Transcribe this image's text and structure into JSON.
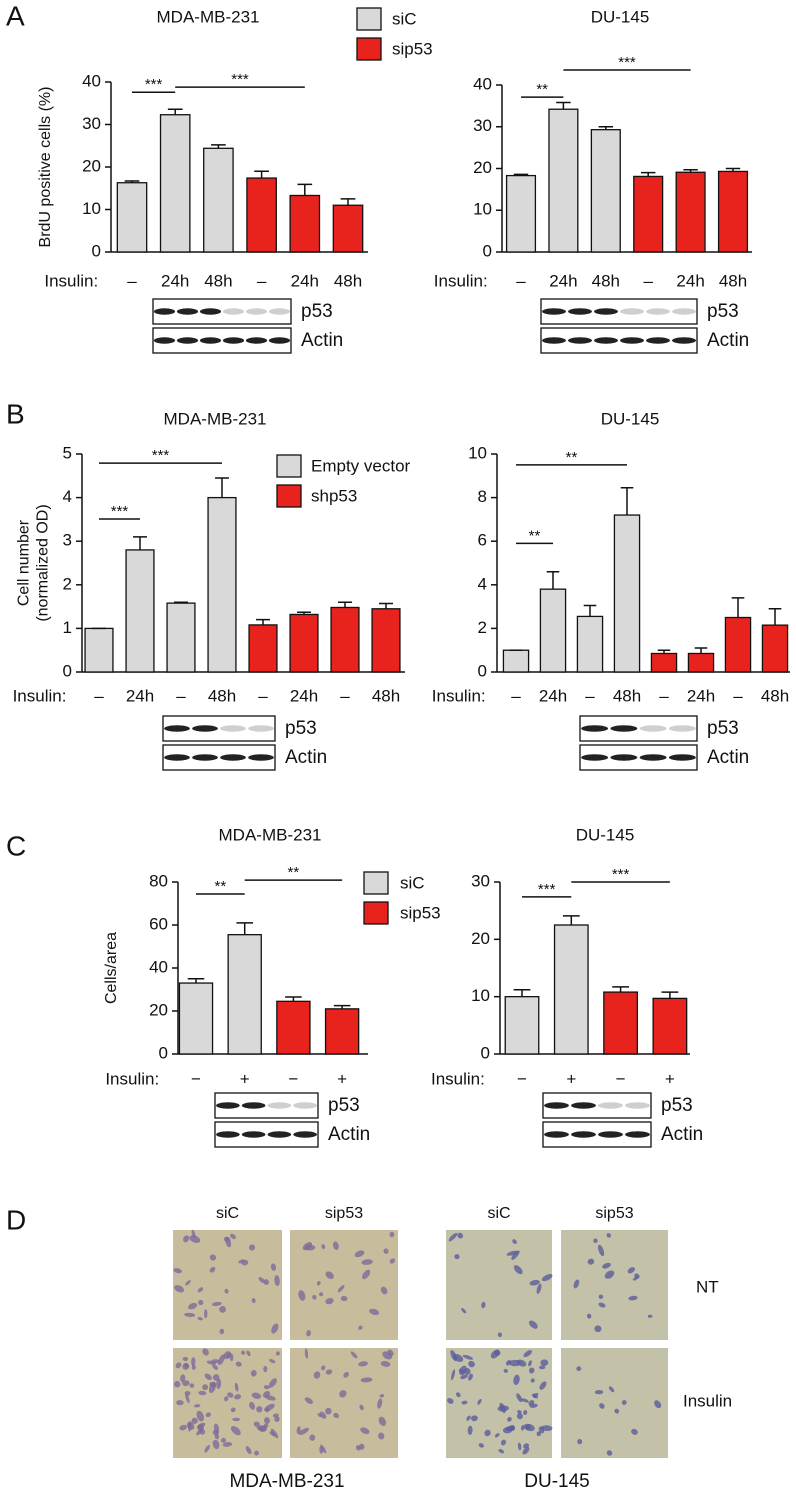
{
  "panel_labels": [
    "A",
    "B",
    "C",
    "D"
  ],
  "chart_data": [
    {
      "type": "bar",
      "title": "MDA-MB-231",
      "y_label": "BrdU positive cells (%)",
      "x_label": "Insulin:",
      "categories": [
        "–",
        "24h",
        "48h",
        "–",
        "24h",
        "48h"
      ],
      "values": [
        16.3,
        32.3,
        24.4,
        17.4,
        13.3,
        11
      ],
      "errors": [
        0.4,
        1.3,
        0.8,
        1.6,
        2.6,
        1.5
      ],
      "bar_colors": [
        "#d9d9d9",
        "#d9d9d9",
        "#d9d9d9",
        "#e8231e",
        "#e8231e",
        "#e8231e"
      ],
      "ylim": [
        0,
        40
      ],
      "yticks": [
        0,
        10,
        20,
        30,
        40
      ],
      "annotations": [
        {
          "label": "***",
          "x1": 0,
          "x2": 1,
          "y": 37.6
        },
        {
          "label": "***",
          "x1": 1,
          "x2": 4,
          "y": 38.8
        }
      ],
      "blot_labels": [
        "p53",
        "Actin"
      ],
      "legend": [
        {
          "name": "siC",
          "color": "#d9d9d9"
        },
        {
          "name": "sip53",
          "color": "#e8231e"
        }
      ]
    },
    {
      "type": "bar",
      "title": "DU-145",
      "x_label": "Insulin:",
      "categories": [
        "–",
        "24h",
        "48h",
        "–",
        "24h",
        "48h"
      ],
      "values": [
        18.3,
        34.2,
        29.3,
        18.1,
        19.1,
        19.3
      ],
      "errors": [
        0.3,
        1.6,
        0.7,
        0.9,
        0.6,
        0.7
      ],
      "bar_colors": [
        "#d9d9d9",
        "#d9d9d9",
        "#d9d9d9",
        "#e8231e",
        "#e8231e",
        "#e8231e"
      ],
      "ylim": [
        0,
        40
      ],
      "yticks": [
        0,
        10,
        20,
        30,
        40
      ],
      "annotations": [
        {
          "label": "**",
          "x1": 0,
          "x2": 1,
          "y": 37.1
        },
        {
          "label": "***",
          "x1": 1,
          "x2": 4,
          "y": 43.6
        }
      ],
      "blot_labels": [
        "p53",
        "Actin"
      ]
    },
    {
      "type": "bar",
      "title": "MDA-MB-231",
      "y_label": [
        "Cell number",
        "(normalized OD)"
      ],
      "x_label": "Insulin:",
      "categories": [
        "–",
        "24h",
        "–",
        "48h",
        "–",
        "24h",
        "–",
        "48h"
      ],
      "values": [
        1.0,
        2.8,
        1.58,
        4.0,
        1.08,
        1.32,
        1.48,
        1.45
      ],
      "errors": [
        0,
        0.3,
        0.02,
        0.45,
        0.12,
        0.05,
        0.12,
        0.12
      ],
      "bar_colors": [
        "#d9d9d9",
        "#d9d9d9",
        "#d9d9d9",
        "#d9d9d9",
        "#e8231e",
        "#e8231e",
        "#e8231e",
        "#e8231e"
      ],
      "ylim": [
        0,
        5
      ],
      "yticks": [
        0,
        1,
        2,
        3,
        4,
        5
      ],
      "annotations": [
        {
          "label": "***",
          "x1": 0,
          "x2": 1,
          "y": 3.51
        },
        {
          "label": "***",
          "x1": 0,
          "x2": 3,
          "y": 4.79
        }
      ],
      "blot_labels": [
        "p53",
        "Actin"
      ],
      "legend": [
        {
          "name": "Empty vector",
          "color": "#d9d9d9"
        },
        {
          "name": "shp53",
          "color": "#e8231e"
        }
      ]
    },
    {
      "type": "bar",
      "title": "DU-145",
      "x_label": "Insulin:",
      "categories": [
        "–",
        "24h",
        "–",
        "48h",
        "–",
        "24h",
        "–",
        "48h"
      ],
      "values": [
        1.0,
        3.8,
        2.55,
        7.2,
        0.85,
        0.85,
        2.5,
        2.15
      ],
      "errors": [
        0,
        0.8,
        0.5,
        1.25,
        0.15,
        0.25,
        0.9,
        0.75
      ],
      "bar_colors": [
        "#d9d9d9",
        "#d9d9d9",
        "#d9d9d9",
        "#d9d9d9",
        "#e8231e",
        "#e8231e",
        "#e8231e",
        "#e8231e"
      ],
      "ylim": [
        0,
        10
      ],
      "yticks": [
        0,
        2,
        4,
        6,
        8,
        10
      ],
      "annotations": [
        {
          "label": "**",
          "x1": 0,
          "x2": 1,
          "y": 5.9
        },
        {
          "label": "**",
          "x1": 0,
          "x2": 3,
          "y": 9.5
        }
      ],
      "blot_labels": [
        "p53",
        "Actin"
      ]
    },
    {
      "type": "bar",
      "title": "MDA-MB-231",
      "y_label": "Cells/area",
      "x_label": "Insulin:",
      "categories": [
        "−",
        "+",
        "−",
        "+"
      ],
      "values": [
        33,
        55.5,
        24.5,
        21
      ],
      "errors": [
        2,
        5.5,
        2,
        1.5
      ],
      "bar_colors": [
        "#d9d9d9",
        "#d9d9d9",
        "#e8231e",
        "#e8231e"
      ],
      "ylim": [
        0,
        80
      ],
      "yticks": [
        0,
        20,
        40,
        60,
        80
      ],
      "annotations": [
        {
          "label": "**",
          "x1": 0,
          "x2": 1,
          "y": 74.4
        },
        {
          "label": "**",
          "x1": 1,
          "x2": 3,
          "y": 80.9
        }
      ],
      "blot_labels": [
        "p53",
        "Actin"
      ],
      "legend": [
        {
          "name": "siC",
          "color": "#d9d9d9"
        },
        {
          "name": "sip53",
          "color": "#e8231e"
        }
      ]
    },
    {
      "type": "bar",
      "title": "DU-145",
      "x_label": "Insulin:",
      "categories": [
        "−",
        "+",
        "−",
        "+"
      ],
      "values": [
        10,
        22.5,
        10.8,
        9.7
      ],
      "errors": [
        1.2,
        1.6,
        0.9,
        1.1
      ],
      "bar_colors": [
        "#d9d9d9",
        "#d9d9d9",
        "#e8231e",
        "#e8231e"
      ],
      "ylim": [
        0,
        30
      ],
      "yticks": [
        0,
        10,
        20,
        30
      ],
      "annotations": [
        {
          "label": "***",
          "x1": 0,
          "x2": 1,
          "y": 27.4
        },
        {
          "label": "***",
          "x1": 1,
          "x2": 3,
          "y": 30.0
        }
      ],
      "blot_labels": [
        "p53",
        "Actin"
      ]
    }
  ],
  "panel_D": {
    "columns": [
      "siC",
      "sip53",
      "siC",
      "sip53"
    ],
    "rows": [
      "NT",
      "Insulin"
    ],
    "titles": [
      "MDA-MB-231",
      "DU-145"
    ]
  }
}
